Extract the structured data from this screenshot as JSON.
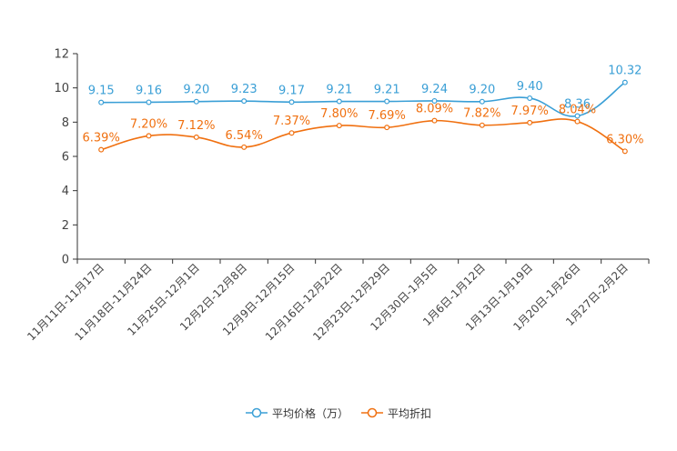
{
  "chart_data": {
    "type": "line",
    "categories": [
      "11月11日-11月17日",
      "11月18日-11月24日",
      "11月25日-12月1日",
      "12月2日-12月8日",
      "12月9日-12月15日",
      "12月16日-12月22日",
      "12月23日-12月29日",
      "12月30日-1月5日",
      "1月6日-1月12日",
      "1月13日-1月19日",
      "1月20日-1月26日",
      "1月27日-2月2日"
    ],
    "ylim": [
      0,
      12
    ],
    "yticks": [
      0,
      2,
      4,
      6,
      8,
      10,
      12
    ],
    "series": [
      {
        "name": "平均价格（万）",
        "color": "#3a9fd6",
        "values": [
          9.15,
          9.16,
          9.2,
          9.23,
          9.17,
          9.21,
          9.21,
          9.24,
          9.2,
          9.4,
          8.36,
          10.32
        ],
        "labels": [
          "9.15",
          "9.16",
          "9.20",
          "9.23",
          "9.17",
          "9.21",
          "9.21",
          "9.24",
          "9.20",
          "9.40",
          "8.36",
          "10.32"
        ]
      },
      {
        "name": "平均折扣",
        "color": "#f07010",
        "values": [
          6.39,
          7.2,
          7.12,
          6.54,
          7.37,
          7.8,
          7.69,
          8.09,
          7.82,
          7.97,
          8.04,
          6.3
        ],
        "labels": [
          "6.39%",
          "7.20%",
          "7.12%",
          "6.54%",
          "7.37%",
          "7.80%",
          "7.69%",
          "8.09%",
          "7.82%",
          "7.97%",
          "8.04%",
          "6.30%"
        ]
      }
    ],
    "legend_position": "bottom-center",
    "grid": false
  }
}
